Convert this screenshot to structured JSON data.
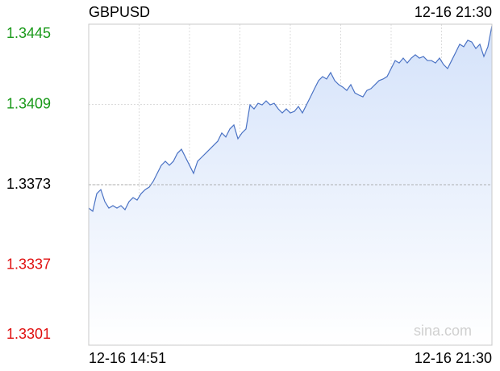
{
  "chart_data": {
    "type": "area",
    "title": "GBPUSD",
    "watermark": "sina.com",
    "categories": [
      "12-16 14:51",
      null,
      null,
      null,
      null,
      null,
      null,
      null,
      null,
      null,
      null,
      null,
      null,
      null,
      null,
      null,
      null,
      null,
      null,
      null,
      null,
      null,
      null,
      null,
      null,
      null,
      null,
      null,
      null,
      null,
      null,
      null,
      null,
      null,
      null,
      null,
      null,
      null,
      null,
      null,
      null,
      null,
      null,
      null,
      null,
      null,
      null,
      null,
      null,
      null,
      null,
      null,
      null,
      null,
      null,
      null,
      null,
      null,
      null,
      null,
      null,
      null,
      null,
      null,
      null,
      null,
      null,
      null,
      null,
      null,
      null,
      null,
      null,
      null,
      null,
      null,
      null,
      null,
      null,
      null,
      null,
      null,
      null,
      null,
      null,
      null,
      null,
      null,
      null,
      null,
      null,
      null,
      null,
      null,
      null,
      null,
      null,
      null,
      null,
      null,
      "12-16 21:30"
    ],
    "values": [
      1.33625,
      1.33611,
      1.3369,
      1.33708,
      1.33654,
      1.33625,
      1.33636,
      1.33625,
      1.33636,
      1.33618,
      1.33654,
      1.33672,
      1.33661,
      1.3369,
      1.33708,
      1.33719,
      1.33745,
      1.33781,
      1.33817,
      1.33835,
      1.33817,
      1.33835,
      1.33871,
      1.33889,
      1.33853,
      1.33817,
      1.33781,
      1.33835,
      1.33853,
      1.33871,
      1.33889,
      1.33907,
      1.33925,
      1.33962,
      1.33944,
      1.3398,
      1.33998,
      1.33936,
      1.33962,
      1.3398,
      1.34088,
      1.3407,
      1.34095,
      1.34088,
      1.34106,
      1.34088,
      1.34095,
      1.3407,
      1.34052,
      1.3407,
      1.34052,
      1.34059,
      1.34081,
      1.34052,
      1.34088,
      1.34124,
      1.34161,
      1.34197,
      1.34215,
      1.34204,
      1.34233,
      1.34197,
      1.34179,
      1.34168,
      1.34153,
      1.34179,
      1.34142,
      1.34132,
      1.34124,
      1.34153,
      1.34161,
      1.34179,
      1.34197,
      1.34204,
      1.34215,
      1.34251,
      1.34287,
      1.34276,
      1.34298,
      1.34276,
      1.34298,
      1.34313,
      1.34298,
      1.34305,
      1.34287,
      1.34287,
      1.34276,
      1.34298,
      1.34269,
      1.34251,
      1.34287,
      1.34323,
      1.3436,
      1.34349,
      1.34378,
      1.3437,
      1.34341,
      1.3436,
      1.34305,
      1.34349,
      1.34443
    ],
    "color": "#4a72c4",
    "fill": "#d4e2fa",
    "ylim": [
      1.3301,
      1.3445
    ],
    "yticks": [
      1.3445,
      1.3409,
      1.3373,
      1.3337,
      1.3301
    ],
    "ytick_colors": [
      "#1a9a1a",
      "#1a9a1a",
      "#000000",
      "#e01010",
      "#e01010"
    ],
    "prev_close": 1.3373,
    "grid": true
  }
}
